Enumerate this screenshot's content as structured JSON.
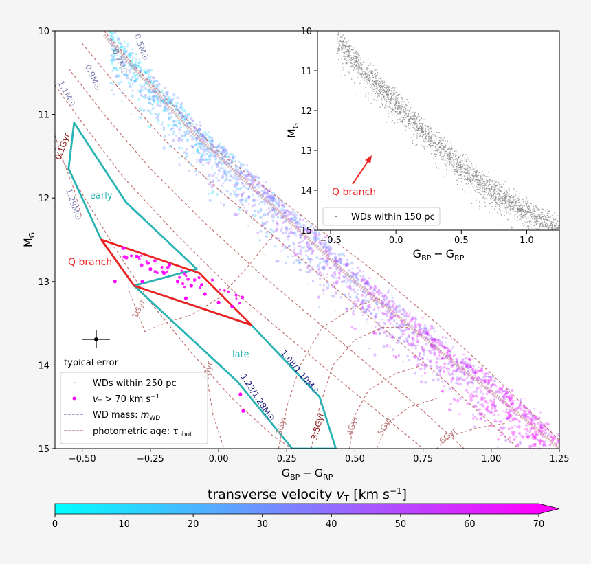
{
  "chart_data": [
    {
      "type": "scatter",
      "title": "",
      "xlabel": "G_BP − G_RP",
      "ylabel": "M_G",
      "xlim": [
        -0.6,
        1.25
      ],
      "ylim": [
        15,
        10
      ],
      "y_inverted": true,
      "xticks": [
        "−0.50",
        "−0.25",
        "0.00",
        "0.25",
        "0.50",
        "0.75",
        "1.00",
        "1.25"
      ],
      "xtick_values": [
        -0.5,
        -0.25,
        0,
        0.25,
        0.5,
        0.75,
        1.0,
        1.25
      ],
      "yticks": [
        "10",
        "11",
        "12",
        "13",
        "14",
        "15"
      ],
      "ytick_values": [
        10,
        11,
        12,
        13,
        14,
        15
      ],
      "grid": false,
      "legend_position": "bottom-left",
      "legend": [
        {
          "label": "WDs within 250 pc",
          "marker": "point",
          "color": "#9fd8ee"
        },
        {
          "label": "v_T > 70 km s⁻¹",
          "marker": "dot",
          "color": "#ff00ff"
        },
        {
          "label": "WD mass: m_WD",
          "marker": "dashed-line",
          "color": "#7070b0"
        },
        {
          "label": "photometric age: τ_phot",
          "marker": "dashed-line",
          "color": "#c07070"
        }
      ],
      "regions": [
        {
          "label": "early",
          "color": "#2ab3b3",
          "polygon": [
            [
              -0.53,
              11.1
            ],
            [
              -0.55,
              11.65
            ],
            [
              -0.43,
              12.5
            ],
            [
              -0.31,
              13.05
            ],
            [
              -0.08,
              12.85
            ],
            [
              -0.34,
              12.05
            ],
            [
              -0.53,
              11.1
            ]
          ]
        },
        {
          "label": "late",
          "color": "#2ab3b3",
          "polygon": [
            [
              -0.31,
              13.05
            ],
            [
              0.12,
              13.52
            ],
            [
              0.37,
              14.38
            ],
            [
              0.43,
              15.0
            ],
            [
              0.27,
              15.0
            ],
            [
              0.07,
              14.2
            ],
            [
              -0.31,
              13.05
            ]
          ]
        },
        {
          "label": "Q branch",
          "color": "#ee2222",
          "polygon": [
            [
              -0.43,
              12.5
            ],
            [
              -0.07,
              12.9
            ],
            [
              0.12,
              13.52
            ],
            [
              -0.31,
              13.05
            ],
            [
              -0.43,
              12.5
            ]
          ]
        }
      ],
      "mass_tracks": [
        {
          "label": "0.5M☉",
          "points": [
            [
              -0.42,
              10.0
            ],
            [
              -0.3,
              10.45
            ],
            [
              -0.15,
              10.95
            ],
            [
              0.0,
              11.45
            ],
            [
              0.2,
              11.95
            ],
            [
              0.4,
              12.45
            ],
            [
              0.6,
              12.95
            ],
            [
              0.8,
              13.5
            ],
            [
              1.0,
              14.1
            ],
            [
              1.25,
              14.9
            ]
          ]
        },
        {
          "label": "0.7M☉",
          "points": [
            [
              -0.5,
              10.15
            ],
            [
              -0.35,
              10.75
            ],
            [
              -0.2,
              11.3
            ],
            [
              0.0,
              11.9
            ],
            [
              0.2,
              12.45
            ],
            [
              0.4,
              13.0
            ],
            [
              0.6,
              13.55
            ],
            [
              0.8,
              14.1
            ],
            [
              1.0,
              14.7
            ],
            [
              1.1,
              15.0
            ]
          ]
        },
        {
          "label": "0.9M☉",
          "points": [
            [
              -0.55,
              10.45
            ],
            [
              -0.42,
              11.0
            ],
            [
              -0.25,
              11.65
            ],
            [
              -0.05,
              12.3
            ],
            [
              0.15,
              12.9
            ],
            [
              0.35,
              13.45
            ],
            [
              0.55,
              14.0
            ],
            [
              0.75,
              14.55
            ],
            [
              0.9,
              15.0
            ]
          ]
        },
        {
          "label": "1.1M☉",
          "points": [
            [
              -0.6,
              10.65
            ],
            [
              -0.5,
              11.1
            ],
            [
              -0.35,
              11.75
            ],
            [
              -0.15,
              12.45
            ],
            [
              0.05,
              13.1
            ],
            [
              0.25,
              13.65
            ],
            [
              0.45,
              14.2
            ],
            [
              0.6,
              14.6
            ],
            [
              0.75,
              15.0
            ]
          ]
        },
        {
          "label": "1.29M☉",
          "points": [
            [
              -0.6,
              11.4
            ],
            [
              -0.5,
              11.95
            ],
            [
              -0.38,
              12.6
            ],
            [
              -0.25,
              13.25
            ],
            [
              -0.1,
              13.85
            ],
            [
              0.05,
              14.4
            ],
            [
              0.2,
              14.85
            ],
            [
              0.27,
              15.0
            ]
          ]
        }
      ],
      "age_isochrones": [
        {
          "label": "0.1Gyr",
          "points": [
            [
              -0.6,
              11.25
            ],
            [
              -0.57,
              11.55
            ],
            [
              -0.53,
              11.9
            ],
            [
              -0.5,
              12.25
            ]
          ]
        },
        {
          "label": "1Gyr",
          "points": [
            [
              -0.33,
              13.1
            ],
            [
              -0.27,
              13.6
            ],
            [
              -0.2,
              13.5
            ],
            [
              -0.1,
              13.4
            ],
            [
              0.0,
              13.2
            ],
            [
              0.1,
              12.85
            ],
            [
              0.2,
              12.45
            ]
          ]
        },
        {
          "label": "2Gyr",
          "points": [
            [
              -0.05,
              14.0
            ],
            [
              -0.02,
              14.6
            ],
            [
              0.02,
              15.0
            ]
          ]
        },
        {
          "label": "3Gyr",
          "points": [
            [
              0.22,
              15.0
            ],
            [
              0.25,
              14.5
            ],
            [
              0.3,
              14.0
            ],
            [
              0.38,
              13.55
            ],
            [
              0.5,
              13.3
            ],
            [
              0.6,
              13.2
            ]
          ]
        },
        {
          "label": "3.5Gyr",
          "points": [
            [
              0.34,
              15.0
            ],
            [
              0.37,
              14.5
            ],
            [
              0.42,
              14.0
            ],
            [
              0.5,
              13.7
            ],
            [
              0.6,
              13.55
            ],
            [
              0.7,
              13.55
            ]
          ]
        },
        {
          "label": "4Gyr",
          "points": [
            [
              0.48,
              15.0
            ],
            [
              0.5,
              14.6
            ],
            [
              0.55,
              14.3
            ],
            [
              0.65,
              14.1
            ],
            [
              0.75,
              14.0
            ]
          ]
        },
        {
          "label": "5Gyr",
          "points": [
            [
              0.58,
              15.0
            ],
            [
              0.62,
              14.7
            ],
            [
              0.7,
              14.5
            ],
            [
              0.8,
              14.4
            ]
          ]
        },
        {
          "label": "6Gyr",
          "points": [
            [
              0.8,
              15.0
            ],
            [
              0.85,
              14.85
            ],
            [
              0.95,
              14.75
            ],
            [
              1.05,
              14.7
            ]
          ]
        }
      ],
      "series": [
        {
          "name": "WDs within 250 pc",
          "ridge": [
            [
              -0.42,
              10.0
            ],
            [
              -0.1,
              11.15
            ],
            [
              0.2,
              12.05
            ],
            [
              0.5,
              12.95
            ],
            [
              0.8,
              13.75
            ],
            [
              1.05,
              14.4
            ],
            [
              1.25,
              14.95
            ]
          ],
          "color_by": "transverse velocity"
        },
        {
          "name": "v_T > 70 km s⁻¹",
          "highlighted_points": [
            [
              -0.3,
              12.7
            ],
            [
              -0.25,
              12.85
            ],
            [
              -0.2,
              12.9
            ],
            [
              -0.15,
              13.0
            ],
            [
              -0.1,
              13.05
            ],
            [
              -0.05,
              13.15
            ],
            [
              0.0,
              13.25
            ],
            [
              -0.35,
              12.6
            ],
            [
              -0.28,
              13.0
            ],
            [
              -0.18,
              12.8
            ],
            [
              0.05,
              13.3
            ],
            [
              -0.12,
              13.2
            ],
            [
              0.08,
              14.35
            ],
            [
              0.09,
              14.55
            ],
            [
              -0.38,
              13.0
            ]
          ]
        }
      ],
      "annotations": [
        {
          "text": "Q branch",
          "color": "#ee2222"
        },
        {
          "text": "early",
          "color": "#2ab3b3"
        },
        {
          "text": "late",
          "color": "#2ab3b3"
        },
        {
          "text": "1.08/1.10M☉",
          "color": "#1a1a80"
        },
        {
          "text": "1.23/1.28M☉",
          "color": "#1a1a80"
        },
        {
          "text": "typical error"
        }
      ],
      "typical_error": {
        "x": -0.45,
        "y": 13.7,
        "xerr": 0.05,
        "yerr": 0.12
      }
    },
    {
      "type": "scatter",
      "title": "",
      "xlabel": "G_BP − G_RP",
      "ylabel": "M_G",
      "xlim": [
        -0.6,
        1.25
      ],
      "ylim": [
        15,
        10
      ],
      "y_inverted": true,
      "xticks": [
        "−0.5",
        "0.0",
        "0.5",
        "1.0"
      ],
      "xtick_values": [
        -0.5,
        0,
        0.5,
        1.0
      ],
      "yticks": [
        "10",
        "11",
        "12",
        "13",
        "14",
        "15"
      ],
      "ytick_values": [
        10,
        11,
        12,
        13,
        14,
        15
      ],
      "legend": [
        {
          "label": "WDs within 150 pc",
          "marker": "point",
          "color": "#808080"
        }
      ],
      "legend_position": "bottom-right",
      "series": [
        {
          "name": "WDs within 150 pc",
          "ridge": [
            [
              -0.45,
              10.2
            ],
            [
              -0.2,
              11.1
            ],
            [
              0.1,
              12.1
            ],
            [
              0.4,
              13.1
            ],
            [
              0.7,
              13.9
            ],
            [
              1.0,
              14.5
            ],
            [
              1.25,
              14.95
            ]
          ],
          "color": "#808080"
        }
      ],
      "annotations": [
        {
          "text": "Q branch",
          "color": "#ee2222"
        }
      ]
    }
  ],
  "colorbar": {
    "label": "transverse velocity v_T [km s⁻¹]",
    "min": 0,
    "max": 70,
    "ticks": [
      "0",
      "10",
      "20",
      "30",
      "40",
      "50",
      "60",
      "70"
    ],
    "tick_values": [
      0,
      10,
      20,
      30,
      40,
      50,
      60,
      70
    ],
    "color_low": "#00ffff",
    "color_high": "#ff00ff",
    "extend": "max"
  },
  "labels": {
    "main_xlabel_base": "G",
    "main_xlabel_sub1": "BP",
    "main_xlabel_sub2": "RP",
    "main_ylabel_base": "M",
    "main_ylabel_sub": "G",
    "inset_xlabel_base": "G",
    "inset_xlabel_sub1": "BP",
    "inset_xlabel_sub2": "RP",
    "inset_ylabel_base": "M",
    "inset_ylabel_sub": "G",
    "minus": "−",
    "legend_1": "WDs within 250 pc",
    "legend_2_a": "v",
    "legend_2_sub": "T",
    "legend_2_b": " > 70 km s",
    "legend_2_sup": "−1",
    "legend_3_a": "WD mass: ",
    "legend_3_m": "m",
    "legend_3_sub": "WD",
    "legend_4_a": "photometric age: ",
    "legend_4_tau": "τ",
    "legend_4_sub": "phot",
    "inset_legend": "WDs within 150 pc",
    "q_branch": "Q branch",
    "inset_q_branch": "Q branch",
    "early": "early",
    "late": "late",
    "typical_error": "typical error",
    "mass_label_1": "1.08/1.10M☉",
    "mass_label_2": "1.23/1.28M☉",
    "cbar_label_a": "transverse velocity ",
    "cbar_label_v": "v",
    "cbar_label_sub": "T",
    "cbar_label_b": " [km s",
    "cbar_label_sup": "−1",
    "cbar_label_c": "]"
  }
}
